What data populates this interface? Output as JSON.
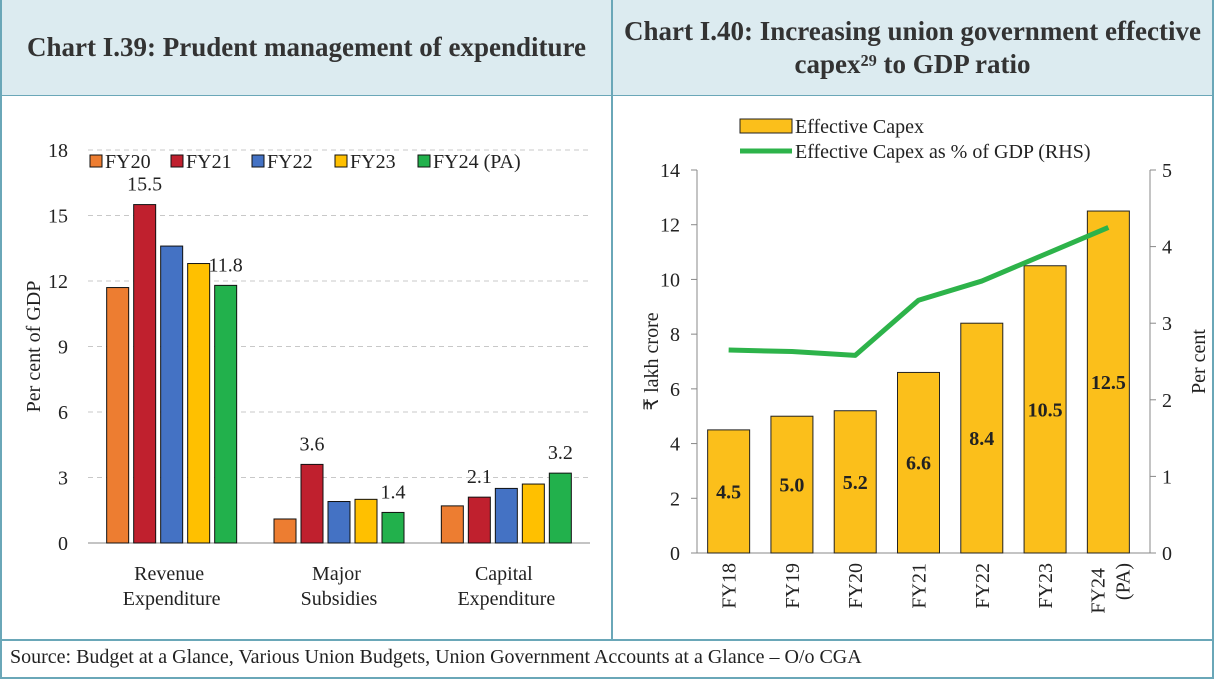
{
  "chart_data": [
    {
      "type": "bar",
      "title": "Chart I.39: Prudent management of expenditure",
      "ylabel": "Per cent of GDP",
      "categories": [
        "Revenue Expenditure",
        "Major Subsidies",
        "Capital Expenditure"
      ],
      "series": [
        {
          "name": "FY20",
          "color": "#ed7d31",
          "values": [
            11.7,
            1.1,
            1.7
          ]
        },
        {
          "name": "FY21",
          "color": "#c0202e",
          "values": [
            15.5,
            3.6,
            2.1
          ],
          "data_labels": true
        },
        {
          "name": "FY22",
          "color": "#4472c4",
          "values": [
            13.6,
            1.9,
            2.5
          ]
        },
        {
          "name": "FY23",
          "color": "#ffc000",
          "values": [
            12.8,
            2.0,
            2.7
          ]
        },
        {
          "name": "FY24 (PA)",
          "color": "#22b14c",
          "values": [
            11.8,
            1.4,
            3.2
          ],
          "data_labels": true
        }
      ],
      "ylim": [
        0,
        18
      ],
      "yticks": [
        0,
        3,
        6,
        9,
        12,
        15,
        18
      ],
      "grid": true,
      "legend": "top"
    },
    {
      "type": "bar_line",
      "title": "Chart I.40: Increasing union government effective capex²⁹ to GDP ratio",
      "ylabel": "₹ lakh crore",
      "y2label": "Per cent",
      "categories": [
        "FY18",
        "FY19",
        "FY20",
        "FY21",
        "FY22",
        "FY23",
        "FY24 (PA)"
      ],
      "series": [
        {
          "name": "Effective Capex",
          "color": "#fbbf1b",
          "type": "bar",
          "values": [
            4.5,
            5.0,
            5.2,
            6.6,
            8.4,
            10.5,
            12.5
          ],
          "value_labels": [
            "4.5",
            "5.0",
            "5.2",
            "6.6",
            "8.4",
            "10.5",
            "12.5"
          ]
        },
        {
          "name": "Effective Capex as % of GDP (RHS)",
          "color": "#2db34a",
          "type": "line",
          "axis": "y2",
          "values": [
            2.65,
            2.63,
            2.58,
            3.3,
            3.55,
            3.9,
            4.25
          ]
        }
      ],
      "ylim": [
        0,
        14
      ],
      "yticks": [
        0,
        2,
        4,
        6,
        8,
        10,
        12,
        14
      ],
      "y2lim": [
        0,
        5
      ],
      "y2ticks": [
        0,
        1,
        2,
        3,
        4,
        5
      ],
      "grid": false,
      "legend": "top-left"
    }
  ],
  "source": "Source: Budget at a Glance, Various Union Budgets, Union Government Accounts at a Glance – O/o CGA"
}
